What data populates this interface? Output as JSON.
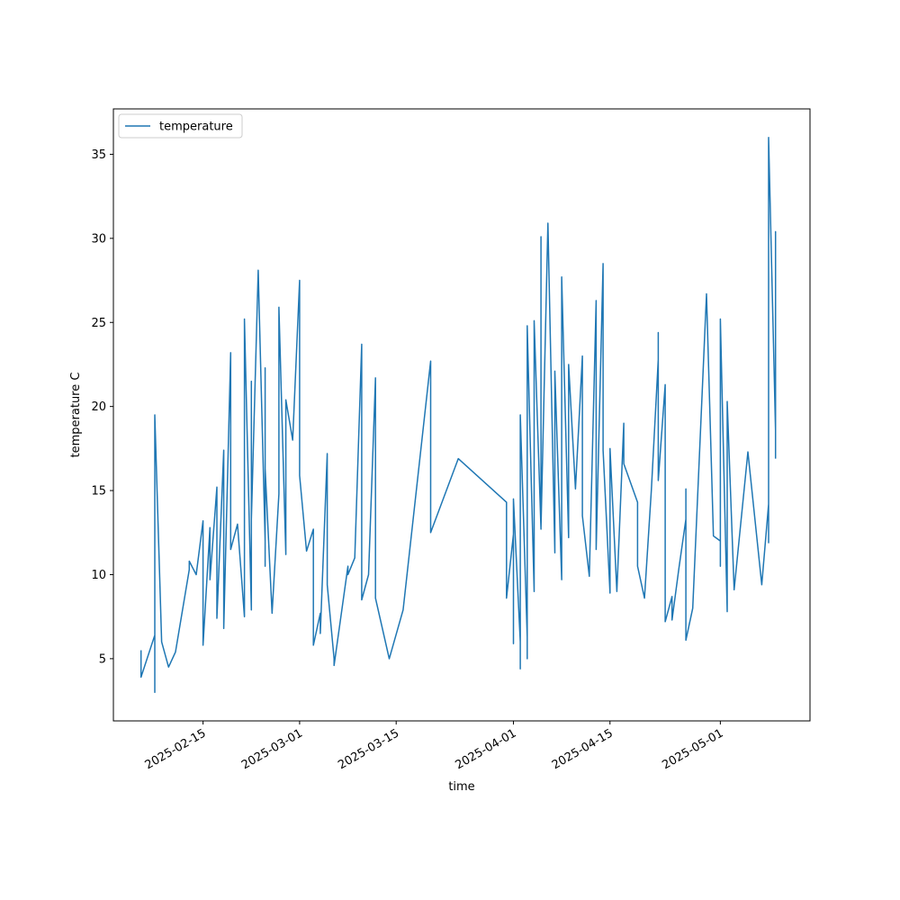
{
  "chart_data": {
    "type": "line",
    "x": [
      "2025-02-06",
      "2025-02-06",
      "2025-02-08",
      "2025-02-08",
      "2025-02-08",
      "2025-02-09",
      "2025-02-10",
      "2025-02-11",
      "2025-02-13",
      "2025-02-13",
      "2025-02-14",
      "2025-02-15",
      "2025-02-15",
      "2025-02-16",
      "2025-02-16",
      "2025-02-17",
      "2025-02-17",
      "2025-02-18",
      "2025-02-18",
      "2025-02-19",
      "2025-02-19",
      "2025-02-20",
      "2025-02-21",
      "2025-02-21",
      "2025-02-22",
      "2025-02-22",
      "2025-02-22",
      "2025-02-23",
      "2025-02-24",
      "2025-02-24",
      "2025-02-24",
      "2025-02-24",
      "2025-02-25",
      "2025-02-26",
      "2025-02-26",
      "2025-02-27",
      "2025-02-27",
      "2025-02-28",
      "2025-03-01",
      "2025-03-01",
      "2025-03-02",
      "2025-03-03",
      "2025-03-03",
      "2025-03-04",
      "2025-03-04",
      "2025-03-05",
      "2025-03-05",
      "2025-03-06",
      "2025-03-06",
      "2025-03-08",
      "2025-03-08",
      "2025-03-09",
      "2025-03-10",
      "2025-03-10",
      "2025-03-10",
      "2025-03-11",
      "2025-03-12",
      "2025-03-12",
      "2025-03-14",
      "2025-03-16",
      "2025-03-20",
      "2025-03-20",
      "2025-03-24",
      "2025-03-31",
      "2025-03-31",
      "2025-03-31",
      "2025-04-01",
      "2025-04-01",
      "2025-04-01",
      "2025-04-02",
      "2025-04-02",
      "2025-04-02",
      "2025-04-03",
      "2025-04-03",
      "2025-04-03",
      "2025-04-04",
      "2025-04-04",
      "2025-04-05",
      "2025-04-05",
      "2025-04-05",
      "2025-04-06",
      "2025-04-07",
      "2025-04-07",
      "2025-04-08",
      "2025-04-08",
      "2025-04-09",
      "2025-04-09",
      "2025-04-10",
      "2025-04-11",
      "2025-04-11",
      "2025-04-12",
      "2025-04-13",
      "2025-04-13",
      "2025-04-14",
      "2025-04-14",
      "2025-04-14",
      "2025-04-15",
      "2025-04-15",
      "2025-04-16",
      "2025-04-17",
      "2025-04-17",
      "2025-04-19",
      "2025-04-19",
      "2025-04-20",
      "2025-04-21",
      "2025-04-22",
      "2025-04-22",
      "2025-04-22",
      "2025-04-23",
      "2025-04-23",
      "2025-04-24",
      "2025-04-24",
      "2025-04-25",
      "2025-04-26",
      "2025-04-26",
      "2025-04-26",
      "2025-04-27",
      "2025-04-29",
      "2025-04-30",
      "2025-05-01",
      "2025-05-01",
      "2025-05-01",
      "2025-05-02",
      "2025-05-02",
      "2025-05-03",
      "2025-05-05",
      "2025-05-07",
      "2025-05-08",
      "2025-05-08",
      "2025-05-08",
      "2025-05-09",
      "2025-05-09",
      "2025-05-09"
    ],
    "series": [
      {
        "name": "temperature",
        "color": "#1f77b4",
        "values": [
          5.5,
          3.9,
          6.4,
          3.0,
          19.5,
          6.0,
          4.5,
          5.4,
          10.3,
          10.8,
          10.0,
          13.2,
          5.8,
          12.8,
          9.7,
          15.2,
          7.4,
          17.4,
          6.8,
          23.2,
          11.5,
          13.0,
          7.5,
          25.2,
          7.9,
          21.5,
          13.3,
          28.1,
          12.0,
          22.3,
          10.5,
          16.3,
          7.7,
          14.8,
          25.9,
          11.2,
          20.4,
          18.0,
          27.5,
          15.9,
          11.4,
          12.7,
          5.8,
          7.7,
          6.5,
          17.2,
          9.4,
          5.0,
          4.6,
          10.5,
          10.0,
          11.0,
          23.7,
          8.9,
          8.5,
          10.0,
          21.7,
          8.6,
          5.0,
          7.9,
          22.7,
          12.5,
          16.9,
          14.3,
          12.5,
          8.6,
          12.4,
          5.9,
          14.5,
          6.0,
          4.4,
          19.5,
          6.3,
          5.0,
          24.8,
          9.0,
          25.1,
          12.7,
          30.1,
          12.8,
          30.9,
          11.3,
          22.1,
          9.7,
          27.7,
          12.2,
          22.5,
          15.1,
          23.0,
          13.5,
          9.9,
          26.3,
          11.5,
          28.5,
          18.0,
          17.4,
          8.9,
          17.5,
          9.0,
          19.0,
          16.6,
          14.3,
          10.5,
          8.6,
          15.0,
          22.8,
          24.4,
          15.6,
          21.3,
          7.2,
          8.7,
          7.3,
          10.4,
          13.3,
          15.1,
          6.1,
          8.0,
          26.7,
          12.3,
          12.0,
          10.5,
          25.2,
          7.8,
          20.3,
          9.1,
          17.3,
          9.4,
          14.2,
          11.9,
          36.0,
          18.6,
          30.4,
          16.9
        ]
      }
    ],
    "xlabel": "time",
    "ylabel": "temperature C",
    "xlim": [
      "2025-02-02",
      "2025-05-14"
    ],
    "xticks": [
      "2025-02-15",
      "2025-03-01",
      "2025-03-15",
      "2025-04-01",
      "2025-04-15",
      "2025-05-01"
    ],
    "ylim": [
      1.3,
      37.7
    ],
    "yticks": [
      5,
      10,
      15,
      20,
      25,
      30,
      35
    ],
    "legend": "upper left",
    "grid": false
  }
}
